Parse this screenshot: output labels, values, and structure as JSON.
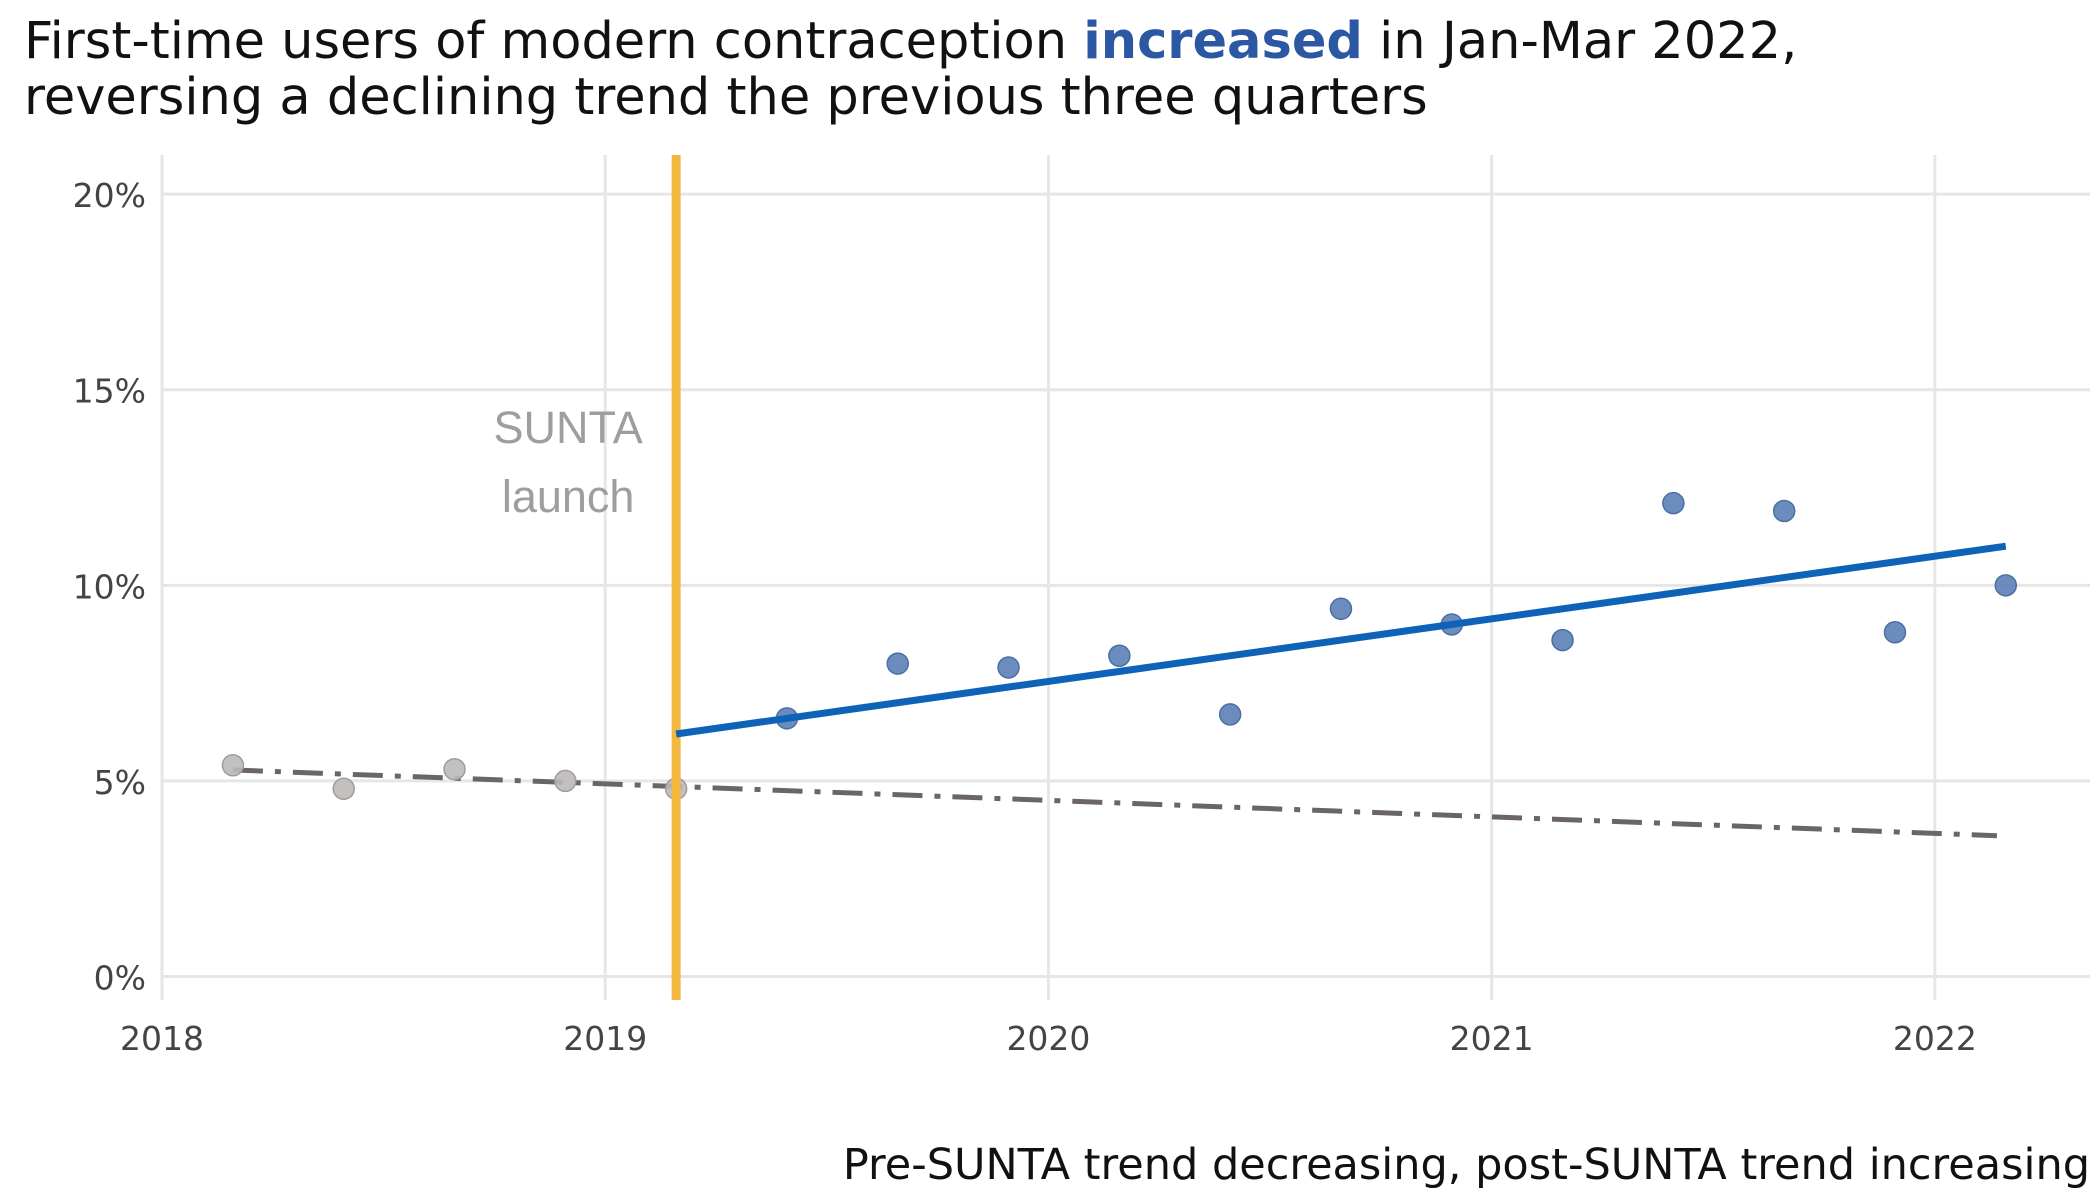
{
  "title": {
    "line1_before": "First-time users of modern contraception ",
    "line1_highlight": "increased",
    "line1_after": " in Jan-Mar 2022,",
    "line2": "reversing a declining trend the previous three quarters"
  },
  "caption": "Pre-SUNTA trend decreasing, post-SUNTA trend increasing",
  "chart_data": {
    "type": "scatter",
    "xlim": [
      2018,
      2022.35
    ],
    "ylim": [
      -0.006,
      0.21
    ],
    "x_ticks": [
      2018,
      2019,
      2020,
      2021,
      2022
    ],
    "x_tick_labels": [
      "2018",
      "2019",
      "2020",
      "2021",
      "2022"
    ],
    "y_ticks": [
      0,
      0.05,
      0.1,
      0.15,
      0.2
    ],
    "y_tick_labels": [
      "0%",
      "5%",
      "10%",
      "15%",
      "20%"
    ],
    "grid": true,
    "series": [
      {
        "role": "pre-launch",
        "color": "#bdb9b9",
        "points": [
          {
            "x": 2018.16,
            "y": 0.054
          },
          {
            "x": 2018.41,
            "y": 0.048
          },
          {
            "x": 2018.66,
            "y": 0.053
          },
          {
            "x": 2018.91,
            "y": 0.05
          },
          {
            "x": 2019.16,
            "y": 0.048
          }
        ]
      },
      {
        "role": "post-launch",
        "color": "#5b80b5",
        "points": [
          {
            "x": 2019.41,
            "y": 0.066
          },
          {
            "x": 2019.66,
            "y": 0.08
          },
          {
            "x": 2019.91,
            "y": 0.079
          },
          {
            "x": 2020.16,
            "y": 0.082
          },
          {
            "x": 2020.41,
            "y": 0.067
          },
          {
            "x": 2020.66,
            "y": 0.094
          },
          {
            "x": 2020.91,
            "y": 0.09
          },
          {
            "x": 2021.16,
            "y": 0.086
          },
          {
            "x": 2021.41,
            "y": 0.121
          },
          {
            "x": 2021.66,
            "y": 0.119
          },
          {
            "x": 2021.91,
            "y": 0.088
          },
          {
            "x": 2022.16,
            "y": 0.1
          }
        ]
      }
    ],
    "trend_lines": [
      {
        "role": "pre-launch trend",
        "style": "dash-dot",
        "color": "#6b6565",
        "x": [
          2018.16,
          2022.14
        ],
        "y": [
          0.0528,
          0.036
        ]
      },
      {
        "role": "post-launch trend",
        "style": "solid",
        "color": "#0e63b8",
        "x": [
          2019.16,
          2022.16
        ],
        "y": [
          0.062,
          0.11
        ]
      }
    ],
    "vline": {
      "x": 2019.16,
      "color": "#f2b73c",
      "label_line1": "SUNTA",
      "label_line2": "launch",
      "label_color": "#9e9e9e"
    }
  }
}
